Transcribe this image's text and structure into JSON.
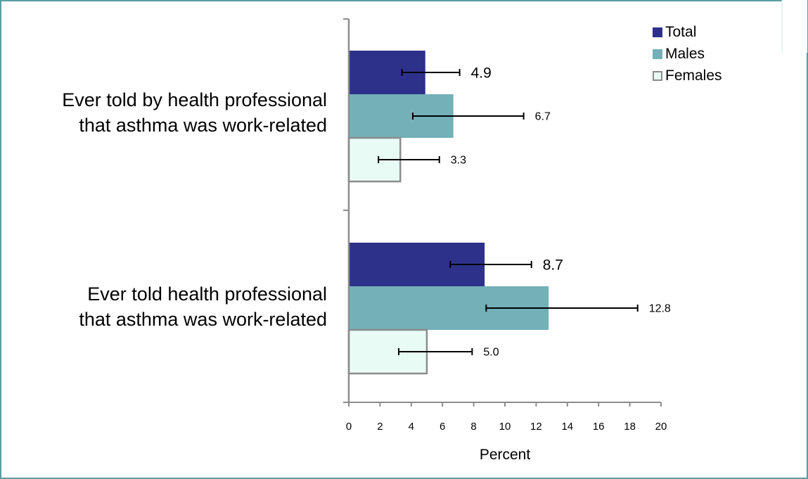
{
  "colors": {
    "total": "#2e3189",
    "males": "#73b0b8",
    "females": "#e8fbf5",
    "females_border": "#8c8c8c",
    "frame": "#5a9ea3",
    "axis": "#8c8c8c"
  },
  "chart_data": {
    "type": "bar",
    "orientation": "horizontal",
    "categories": [
      "Ever told by health professional\nthat asthma was work-related",
      "Ever told health professional\nthat asthma was work-related"
    ],
    "series": [
      {
        "name": "Total",
        "values": [
          4.9,
          8.7
        ],
        "error_low": [
          3.4,
          6.5
        ],
        "error_high": [
          7.1,
          11.7
        ],
        "labels": [
          "4.9",
          "8.7"
        ]
      },
      {
        "name": "Males",
        "values": [
          6.7,
          12.8
        ],
        "error_low": [
          4.1,
          8.8
        ],
        "error_high": [
          11.2,
          18.5
        ],
        "labels": [
          "6.7",
          "12.8"
        ]
      },
      {
        "name": "Females",
        "values": [
          3.3,
          5.0
        ],
        "error_low": [
          1.9,
          3.2
        ],
        "error_high": [
          5.8,
          7.9
        ],
        "labels": [
          "3.3",
          "5.0"
        ]
      }
    ],
    "xlabel": "Percent",
    "xlim": [
      0,
      20
    ],
    "xticks": [
      "0",
      "2",
      "4",
      "6",
      "8",
      "10",
      "12",
      "14",
      "16",
      "18",
      "20"
    ],
    "legend": "top-right",
    "grid": false
  }
}
